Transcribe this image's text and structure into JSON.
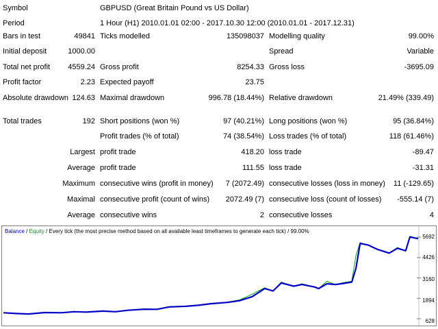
{
  "report": {
    "symbol_label": "Symbol",
    "symbol_value": "GBPUSD (Great Britain Pound vs US Dollar)",
    "period_label": "Period",
    "period_value": "1 Hour (H1) 2010.01.01 02:00 - 2017.10.30 12:00 (2010.01.01 - 2017.12.31)",
    "bars_label": "Bars in test",
    "bars_value": "49841",
    "ticks_label": "Ticks modelled",
    "ticks_value": "135098037",
    "quality_label": "Modelling quality",
    "quality_value": "99.00%",
    "deposit_label": "Initial deposit",
    "deposit_value": "1000.00",
    "spread_label": "Spread",
    "spread_value": "Variable",
    "netprofit_label": "Total net profit",
    "netprofit_value": "4559.24",
    "grossprofit_label": "Gross profit",
    "grossprofit_value": "8254.33",
    "grossloss_label": "Gross loss",
    "grossloss_value": "-3695.09",
    "pf_label": "Profit factor",
    "pf_value": "2.23",
    "payoff_label": "Expected payoff",
    "payoff_value": "23.75",
    "absdd_label": "Absolute drawdown",
    "absdd_value": "124.63",
    "maxdd_label": "Maximal drawdown",
    "maxdd_value": "996.78 (18.44%)",
    "reldd_label": "Relative drawdown",
    "reldd_value": "21.49% (339.49)",
    "trades_label": "Total trades",
    "trades_value": "192",
    "short_label": "Short positions (won %)",
    "short_value": "97 (40.21%)",
    "long_label": "Long positions (won %)",
    "long_value": "95 (36.84%)",
    "ptrades_label": "Profit trades (% of total)",
    "ptrades_value": "74 (38.54%)",
    "ltrades_label": "Loss trades (% of total)",
    "ltrades_value": "118 (61.46%)",
    "largest_label": "Largest",
    "largest_pt_label": "profit trade",
    "largest_pt_value": "418.20",
    "largest_lt_label": "loss trade",
    "largest_lt_value": "-89.47",
    "average_label": "Average",
    "average_pt_label": "profit trade",
    "average_pt_value": "111.55",
    "average_lt_label": "loss trade",
    "average_lt_value": "-31.31",
    "maximum_label": "Maximum",
    "max_cw_label": "consecutive wins (profit in money)",
    "max_cw_value": "7 (2072.49)",
    "max_cl_label": "consecutive losses (loss in money)",
    "max_cl_value": "11 (-129.65)",
    "maximal_label": "Maximal",
    "mxl_cp_label": "consecutive profit (count of wins)",
    "mxl_cp_value": "2072.49 (7)",
    "mxl_cl_label": "consecutive loss (count of losses)",
    "mxl_cl_value": "-555.14 (7)",
    "avgc_label": "Average",
    "avg_cw_label": "consecutive wins",
    "avg_cw_value": "2",
    "avg_cl_label": "consecutive losses",
    "avg_cl_value": "4"
  },
  "chart": {
    "legend_balance": "Balance",
    "legend_sep1": " / ",
    "legend_equity": "Equity",
    "legend_rest": " / Every tick (the most precise method based on all available least timeframes to generate each tick) / 99.00%",
    "color_balance": "#0000c8",
    "color_equity": "#00a000"
  },
  "chart_data": {
    "type": "line",
    "ylim": [
      628,
      5692
    ],
    "yticks": [
      "5692",
      "4426",
      "3160",
      "1894",
      "628"
    ],
    "x": [
      0,
      3,
      6,
      10,
      14,
      17,
      20,
      24,
      27,
      30,
      34,
      37,
      40,
      44,
      47,
      50,
      54,
      57,
      60,
      63,
      65,
      67,
      70,
      72,
      75,
      76,
      78,
      80,
      82,
      84,
      85,
      86,
      88,
      90,
      93,
      95,
      97,
      98,
      100
    ],
    "series": [
      {
        "name": "Balance",
        "values": [
          1000,
          950,
          920,
          1010,
          1000,
          1060,
          1040,
          1100,
          1060,
          1150,
          1220,
          1210,
          1360,
          1400,
          1460,
          1560,
          1640,
          1750,
          2000,
          2500,
          2350,
          2850,
          2650,
          2750,
          2600,
          2500,
          2800,
          2750,
          2820,
          2900,
          3750,
          5300,
          5200,
          4950,
          4700,
          5000,
          4850,
          5700,
          5600
        ]
      },
      {
        "name": "Equity",
        "values": [
          1000,
          950,
          920,
          1020,
          1000,
          1080,
          1040,
          1120,
          1060,
          1160,
          1240,
          1220,
          1380,
          1420,
          1480,
          1580,
          1660,
          1800,
          2150,
          2550,
          2350,
          2900,
          2650,
          2800,
          2600,
          2500,
          2950,
          2750,
          2870,
          2950,
          4550,
          5350,
          5200,
          4950,
          4700,
          5050,
          4850,
          5750,
          5600
        ]
      }
    ]
  }
}
